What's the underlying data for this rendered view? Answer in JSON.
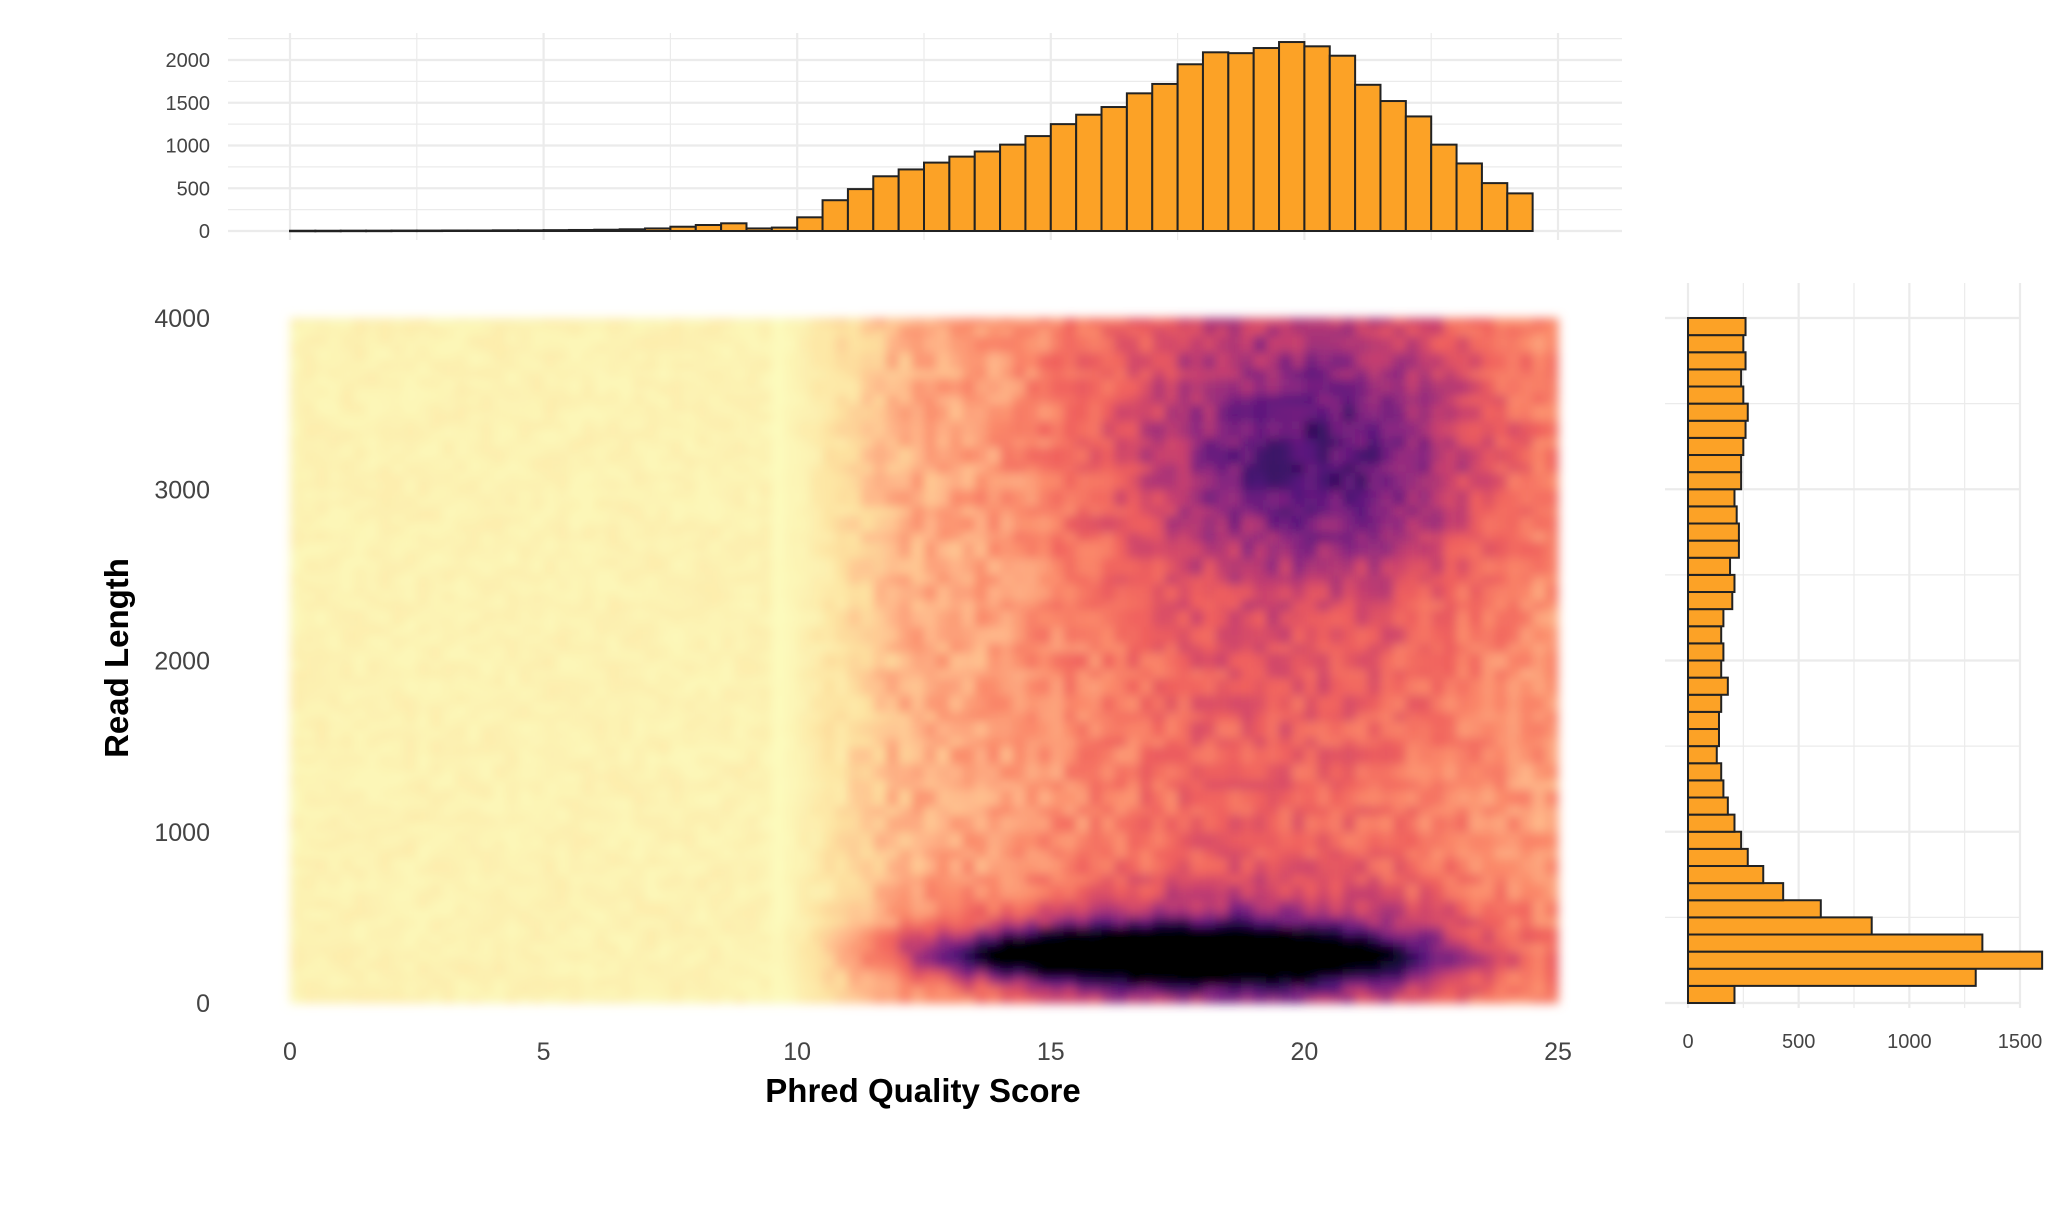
{
  "chart_data": {
    "type": "heatmap",
    "xlabel": "Phred Quality Score",
    "ylabel": "Read Length",
    "xlim": [
      0,
      25
    ],
    "ylim": [
      0,
      4000
    ],
    "x_ticks": [
      "0",
      "5",
      "10",
      "15",
      "20",
      "25"
    ],
    "y_ticks": [
      "0",
      "1000",
      "2000",
      "3000",
      "4000"
    ],
    "grid": true,
    "colormap": [
      "#fcfdbf",
      "#fde2a0",
      "#feb78a",
      "#fb8a6a",
      "#f0605d",
      "#c8406e",
      "#8c2981",
      "#51127c",
      "#1d1147",
      "#000004"
    ],
    "bar_fill": "#fca226",
    "bar_stroke": "#222222",
    "density_description": "Density of reads by quality score and read length; strongest concentration near read length 200-400 at quality 14-21.",
    "density_peaks": [
      {
        "x": 16.2,
        "y": 290,
        "weight": 1.0
      },
      {
        "x": 18.6,
        "y": 270,
        "weight": 1.0
      },
      {
        "x": 20.5,
        "y": 3200,
        "weight": 0.35
      }
    ],
    "marginal_x": {
      "bin_width": 0.5,
      "bin_start": 0.25,
      "ticks": [
        "0",
        "500",
        "1000",
        "1500",
        "2000"
      ],
      "ylim": [
        0,
        2200
      ],
      "values": [
        3,
        3,
        4,
        4,
        5,
        5,
        6,
        6,
        8,
        8,
        10,
        12,
        15,
        20,
        30,
        50,
        70,
        90,
        30,
        40,
        160,
        360,
        490,
        640,
        720,
        800,
        870,
        930,
        1010,
        1110,
        1250,
        1360,
        1450,
        1610,
        1720,
        1950,
        2090,
        2080,
        2140,
        2210,
        2160,
        2050,
        1710,
        1520,
        1340,
        1010,
        790,
        560,
        440
      ]
    },
    "marginal_y": {
      "bin_width": 100,
      "bin_start": 50,
      "ticks": [
        "0",
        "500",
        "1000",
        "1500"
      ],
      "xlim": [
        0,
        1650
      ],
      "values": [
        210,
        1300,
        1600,
        1330,
        830,
        600,
        430,
        340,
        270,
        240,
        210,
        180,
        160,
        150,
        130,
        140,
        140,
        150,
        180,
        150,
        160,
        150,
        160,
        200,
        210,
        190,
        230,
        230,
        220,
        210,
        240,
        240,
        250,
        260,
        270,
        250,
        240,
        260,
        250,
        260
      ]
    }
  }
}
